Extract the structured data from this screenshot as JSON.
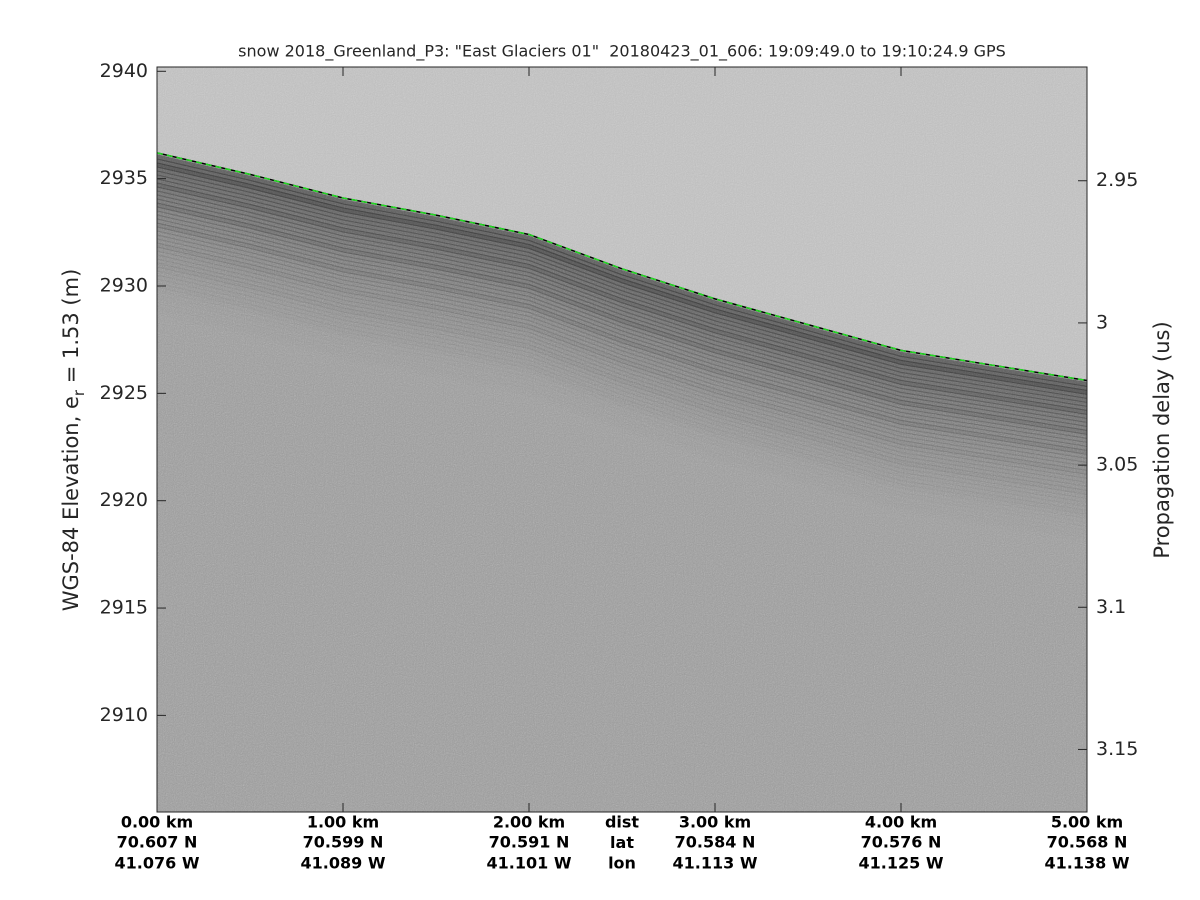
{
  "chart_data": {
    "type": "echogram",
    "title": "snow 2018_Greenland_P3: \"East Glaciers 01\"  20180423_01_606: 19:09:49.0 to 19:10:24.9 GPS",
    "ylabel": [
      "WGS-84 Elevation, e",
      "r",
      " = 1.53 (m)"
    ],
    "y2label": "Propagation delay (us)",
    "xlim": [
      0,
      5
    ],
    "xticks": [
      {
        "value": 0,
        "label": "0.00 km"
      },
      {
        "value": 1,
        "label": "1.00 km"
      },
      {
        "value": 2,
        "label": "2.00 km"
      },
      {
        "value": 3,
        "label": "3.00 km"
      },
      {
        "value": 4,
        "label": "4.00 km"
      },
      {
        "value": 5,
        "label": "5.00 km"
      }
    ],
    "lat_labels": [
      "70.607 N",
      "70.599 N",
      "70.591 N",
      "70.584 N",
      "70.576 N",
      "70.568 N"
    ],
    "lon_labels": [
      "41.076 W",
      "41.089 W",
      "41.101 W",
      "41.113 W",
      "41.125 W",
      "41.138 W"
    ],
    "row_headers": [
      "dist",
      "lat",
      "lon"
    ],
    "ylim": [
      2905.5,
      2940.2
    ],
    "yticks": [
      2910,
      2915,
      2920,
      2925,
      2930,
      2935,
      2940
    ],
    "y2lim": [
      3.172,
      2.91
    ],
    "y2ticks": [
      2.95,
      3,
      3.05,
      3.1,
      3.15
    ],
    "surface": {
      "color": "#22dd22",
      "x": [
        0,
        0.5,
        1,
        1.5,
        2,
        2.5,
        3,
        3.5,
        4,
        4.5,
        5
      ],
      "values": [
        2936.2,
        2935.2,
        2934.1,
        2933.3,
        2932.4,
        2930.8,
        2929.4,
        2928.2,
        2927.0,
        2926.3,
        2925.6
      ]
    }
  }
}
